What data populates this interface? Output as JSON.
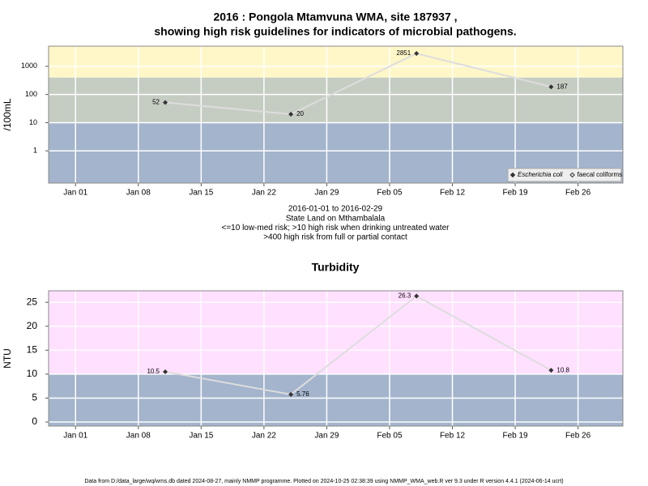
{
  "chart_data": [
    {
      "type": "line",
      "title": [
        "2016 : Pongola Mtamvuna WMA, site 187937 ,",
        "showing high risk guidelines for indicators of microbial pathogens."
      ],
      "ylabel": "/100mL",
      "caption": [
        "2016-01-01 to 2016-02-29",
        "State Land on Mthambalala",
        "<=10 low-med risk; >10 high risk when drinking untreated water",
        ">400 high risk from full or partial contact"
      ],
      "x": [
        "2016-01-11",
        "2016-01-25",
        "2016-02-08",
        "2016-02-23"
      ],
      "series": [
        {
          "name": "Escherichia coli",
          "color": "#333333",
          "values": [
            52,
            20,
            2851,
            187
          ]
        },
        {
          "name": "faecal coliforms",
          "color": "#333333",
          "values": [
            null,
            null,
            null,
            null
          ]
        }
      ],
      "log_y": true,
      "ylim": [
        0.072,
        5180
      ],
      "yticks": [
        1,
        10,
        100,
        1000
      ],
      "xlim": [
        "2015-12-29",
        "2016-03-02"
      ],
      "xticks": [
        {
          "value": "2016-01-01",
          "label": "Jan 01"
        },
        {
          "value": "2016-01-08",
          "label": "Jan 08"
        },
        {
          "value": "2016-01-15",
          "label": "Jan 15"
        },
        {
          "value": "2016-01-22",
          "label": "Jan 22"
        },
        {
          "value": "2016-01-29",
          "label": "Jan 29"
        },
        {
          "value": "2016-02-05",
          "label": "Feb 05"
        },
        {
          "value": "2016-02-12",
          "label": "Feb 12"
        },
        {
          "value": "2016-02-19",
          "label": "Feb 19"
        },
        {
          "value": "2016-02-26",
          "label": "Feb 26"
        }
      ],
      "thresholds": [
        10,
        400
      ],
      "band_colors": [
        "#a3b4cc",
        "#c5cdc3",
        "#fff7c8"
      ],
      "line_color": "#dddddd",
      "grid": true,
      "legend": "bottom right"
    },
    {
      "type": "line",
      "title": [
        "Turbidity"
      ],
      "ylabel": "NTU",
      "x": [
        "2016-01-11",
        "2016-01-25",
        "2016-02-08",
        "2016-02-23"
      ],
      "series": [
        {
          "name": null,
          "color": "#333333",
          "values": [
            10.5,
            5.76,
            26.3,
            10.8
          ]
        }
      ],
      "log_y": false,
      "ylim": [
        -0.84,
        27.4
      ],
      "yticks": [
        0,
        5,
        10,
        15,
        20,
        25
      ],
      "xlim": [
        "2015-12-29",
        "2016-03-02"
      ],
      "xticks": [
        {
          "value": "2016-01-01",
          "label": "Jan 01"
        },
        {
          "value": "2016-01-08",
          "label": "Jan 08"
        },
        {
          "value": "2016-01-15",
          "label": "Jan 15"
        },
        {
          "value": "2016-01-22",
          "label": "Jan 22"
        },
        {
          "value": "2016-01-29",
          "label": "Jan 29"
        },
        {
          "value": "2016-02-05",
          "label": "Feb 05"
        },
        {
          "value": "2016-02-12",
          "label": "Feb 12"
        },
        {
          "value": "2016-02-19",
          "label": "Feb 19"
        },
        {
          "value": "2016-02-26",
          "label": "Feb 26"
        }
      ],
      "thresholds": [
        10
      ],
      "band_colors": [
        "#a3b4cc",
        "#ffe0ff"
      ],
      "line_color": "#dddddd",
      "grid": true
    }
  ],
  "footer": "Data from D:/data_large/wq/wms.db dated 2024-08-27, mainly NMMP programme. Plotted on 2024-10-25 02:38:39 using NMMP_WMA_web.R ver 9.3 under R version 4.4.1 (2024-06-14 ucrt)"
}
